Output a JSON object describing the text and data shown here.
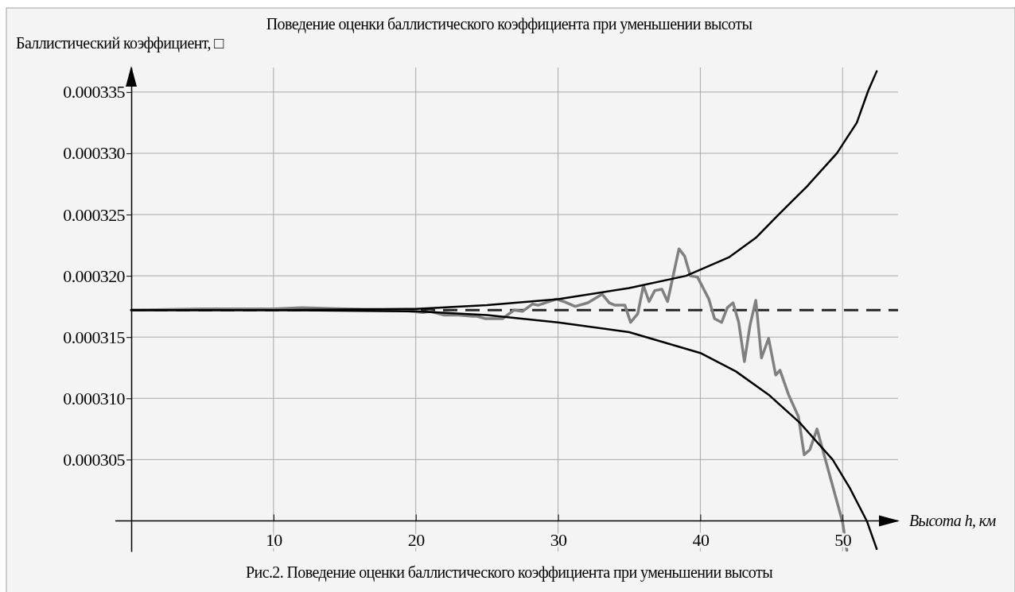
{
  "chart_data": {
    "type": "line",
    "title": "Поведение оценки баллистического коэффициента при уменьшении высоты",
    "xlabel": "Высота h, км",
    "ylabel": "Баллистический коэффициент, □",
    "annotations": [
      "Рис.2. Поведение оценки баллистического коэффициента при уменьшении высоты"
    ],
    "xlim": [
      0,
      53.9
    ],
    "ylim": [
      0.0002975,
      0.000337
    ],
    "xticks": [
      10,
      20,
      30,
      40,
      50
    ],
    "yticks": [
      0.000305,
      {
        "value": 0.00031,
        "label": "0.000310"
      },
      0.000315,
      {
        "value": 0.00032,
        "label": "0.000320"
      },
      0.000325,
      {
        "value": 0.00033,
        "label": "0.000330"
      },
      0.000335
    ],
    "grid": true,
    "ref_lines": [
      {
        "axis": "y",
        "value": 0.0003172,
        "color": "#262626",
        "line_style": "dashed"
      }
    ],
    "series": [
      {
        "color": "#808080",
        "x": [
          0,
          5,
          10,
          12,
          15,
          19,
          20.5,
          21,
          22,
          23,
          24,
          24.3,
          24.9,
          26.1,
          26.9,
          27.5,
          28.2,
          28.6,
          29.9,
          30.4,
          31.2,
          32.1,
          33.1,
          33.6,
          34,
          34.7,
          35.1,
          35.6,
          36,
          36.4,
          36.8,
          37.3,
          37.7,
          38.5,
          38.9,
          39.3,
          39.8,
          40.6,
          41,
          41.5,
          41.9,
          42.3,
          42.7,
          43.1,
          43.5,
          43.9,
          44.3,
          44.8,
          45.3,
          45.6,
          46.2,
          46.9,
          47.3,
          47.7,
          48.2,
          50,
          50.3
        ],
        "values": [
          0.0003172,
          0.0003173,
          0.0003173,
          0.0003174,
          0.0003173,
          0.0003172,
          0.000317,
          0.0003171,
          0.0003168,
          0.0003168,
          0.0003167,
          0.0003167,
          0.0003165,
          0.0003165,
          0.0003172,
          0.0003171,
          0.0003177,
          0.0003176,
          0.0003181,
          0.0003179,
          0.0003175,
          0.0003178,
          0.0003185,
          0.0003178,
          0.0003176,
          0.0003176,
          0.0003162,
          0.0003169,
          0.0003192,
          0.0003179,
          0.0003188,
          0.0003189,
          0.0003179,
          0.0003222,
          0.0003216,
          0.00032,
          0.0003199,
          0.0003181,
          0.0003165,
          0.0003162,
          0.0003174,
          0.0003178,
          0.0003162,
          0.000313,
          0.000316,
          0.000318,
          0.0003133,
          0.0003149,
          0.0003119,
          0.0003123,
          0.0003103,
          0.0003085,
          0.0003054,
          0.0003058,
          0.0003075,
          0.0002999,
          0.0002976
        ]
      },
      {
        "color": "#000000",
        "x": [
          0,
          10,
          20,
          25,
          30,
          35,
          39,
          42,
          43.9,
          45.5,
          47.5,
          49.6,
          51,
          51.8,
          52.4
        ],
        "values": [
          0.0003172,
          0.0003172,
          0.0003173,
          0.0003176,
          0.0003181,
          0.000319,
          0.00032,
          0.0003215,
          0.0003231,
          0.000325,
          0.0003273,
          0.00033,
          0.0003325,
          0.0003351,
          0.0003367
        ]
      },
      {
        "color": "#000000",
        "x": [
          0,
          10,
          20,
          25,
          30,
          35,
          40,
          42.5,
          44.8,
          47,
          49.3,
          50.5,
          51.7,
          52.4
        ],
        "values": [
          0.0003172,
          0.0003172,
          0.0003171,
          0.0003168,
          0.0003162,
          0.0003154,
          0.0003137,
          0.0003122,
          0.0003103,
          0.000308,
          0.000305,
          0.0003027,
          0.0003,
          0.0002977
        ]
      }
    ]
  }
}
